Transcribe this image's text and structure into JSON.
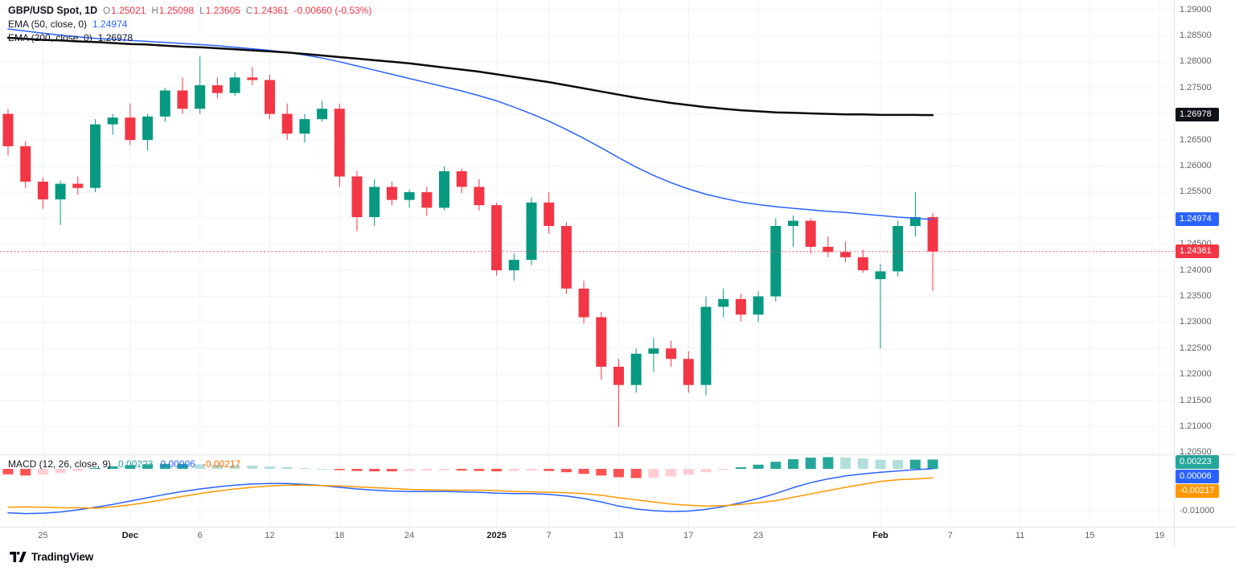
{
  "colors": {
    "up": "#089981",
    "down": "#f23645",
    "ema50": "#2962ff",
    "ema200": "#0a0a0a",
    "macd_line": "#2962ff",
    "signal_line": "#ff9800",
    "hist_up_strong": "#26a69a",
    "hist_up_weak": "#b2dfdb",
    "hist_dn_strong": "#ff5252",
    "hist_dn_weak": "#ffcdd2",
    "grid": "#f0f3fa",
    "border": "#e0e3eb",
    "last_price_line": "#f23645",
    "badge_ema200": "#0f1318",
    "badge_ema50": "#2962ff",
    "badge_last": "#f23645",
    "badge_hist": "#26a69a",
    "badge_macd": "#2962ff",
    "badge_signal": "#ff9800"
  },
  "header": {
    "symbol": {
      "title": "GBP/USD Spot, 1D",
      "o_label": "O",
      "o": "1.25021",
      "h_label": "H",
      "h": "1.25098",
      "l_label": "L",
      "l": "1.23605",
      "c_label": "C",
      "c": "1.24361",
      "change": "-0.00660 (-0.53%)"
    },
    "ema50": {
      "title": "EMA (50, close, 0)",
      "value": "1.24974"
    },
    "ema200": {
      "title": "EMA (200, close, 0)",
      "value": "1.26978"
    }
  },
  "macd_legend": {
    "title": "MACD (12, 26, close, 9)",
    "hist": "0.00223",
    "macd": "0.00006",
    "signal": "-0.00217"
  },
  "price_axis": {
    "ticks": [
      "1.29000",
      "1.28500",
      "1.28000",
      "1.27500",
      "1.27000",
      "1.26500",
      "1.26000",
      "1.25500",
      "1.25000",
      "1.24500",
      "1.24000",
      "1.23500",
      "1.23000",
      "1.22500",
      "1.22000",
      "1.21500",
      "1.21000",
      "1.20500"
    ],
    "badges": {
      "ema200": "1.26978",
      "ema50": "1.24974",
      "last": "1.24361"
    }
  },
  "macd_axis": {
    "badges": {
      "hist": "0.00223",
      "macd": "0.00006",
      "signal": "-0.00217"
    },
    "tick": "-0.01000"
  },
  "time_axis": {
    "labels": [
      {
        "text": "25",
        "i": 2,
        "major": false
      },
      {
        "text": "Dec",
        "i": 7,
        "major": true
      },
      {
        "text": "6",
        "i": 11,
        "major": false
      },
      {
        "text": "12",
        "i": 15,
        "major": false
      },
      {
        "text": "18",
        "i": 19,
        "major": false
      },
      {
        "text": "24",
        "i": 23,
        "major": false
      },
      {
        "text": "2025",
        "i": 28,
        "major": true
      },
      {
        "text": "7",
        "i": 31,
        "major": false
      },
      {
        "text": "13",
        "i": 35,
        "major": false
      },
      {
        "text": "17",
        "i": 39,
        "major": false
      },
      {
        "text": "23",
        "i": 43,
        "major": false
      },
      {
        "text": "Feb",
        "i": 50,
        "major": true
      },
      {
        "text": "7",
        "i": 54,
        "major": false
      },
      {
        "text": "11",
        "i": 58,
        "major": false
      },
      {
        "text": "15",
        "i": 62,
        "major": false
      },
      {
        "text": "19",
        "i": 66,
        "major": false
      }
    ]
  },
  "footer": {
    "brand": "TradingView"
  },
  "chart_data": [
    {
      "type": "candlestick",
      "title": "GBP/USD Spot, 1D",
      "ylim": [
        1.205,
        1.292
      ],
      "y_tick_step": 0.005,
      "last": {
        "open": 1.25021,
        "high": 1.25098,
        "low": 1.23605,
        "close": 1.24361,
        "change": -0.0066,
        "change_pct": -0.53
      },
      "dates": [
        "Nov 21",
        "Nov 22",
        "Nov 25",
        "Nov 26",
        "Nov 27",
        "Nov 28",
        "Nov 29",
        "Dec 2",
        "Dec 3",
        "Dec 4",
        "Dec 5",
        "Dec 6",
        "Dec 9",
        "Dec 10",
        "Dec 11",
        "Dec 12",
        "Dec 13",
        "Dec 16",
        "Dec 17",
        "Dec 18",
        "Dec 19",
        "Dec 20",
        "Dec 23",
        "Dec 24",
        "Dec 26",
        "Dec 27",
        "Dec 30",
        "Dec 31",
        "Jan 2",
        "Jan 3",
        "Jan 6",
        "Jan 7",
        "Jan 8",
        "Jan 9",
        "Jan 10",
        "Jan 13",
        "Jan 14",
        "Jan 15",
        "Jan 16",
        "Jan 17",
        "Jan 20",
        "Jan 21",
        "Jan 22",
        "Jan 23",
        "Jan 24",
        "Jan 27",
        "Jan 28",
        "Jan 29",
        "Jan 30",
        "Jan 31",
        "Feb 3",
        "Feb 4",
        "Feb 5",
        "Feb 6"
      ],
      "ohlc": [
        [
          1.27,
          1.271,
          1.262,
          1.2638
        ],
        [
          1.2638,
          1.2648,
          1.2558,
          1.257
        ],
        [
          1.257,
          1.2578,
          1.2518,
          1.2536
        ],
        [
          1.2536,
          1.2572,
          1.2487,
          1.2566
        ],
        [
          1.2566,
          1.258,
          1.2545,
          1.2558
        ],
        [
          1.2558,
          1.269,
          1.255,
          1.268
        ],
        [
          1.268,
          1.27,
          1.266,
          1.2693
        ],
        [
          1.2693,
          1.272,
          1.264,
          1.265
        ],
        [
          1.265,
          1.27,
          1.263,
          1.2695
        ],
        [
          1.2695,
          1.275,
          1.2685,
          1.2745
        ],
        [
          1.2745,
          1.277,
          1.27,
          1.271
        ],
        [
          1.271,
          1.281,
          1.27,
          1.2755
        ],
        [
          1.2755,
          1.277,
          1.273,
          1.274
        ],
        [
          1.274,
          1.278,
          1.2735,
          1.277
        ],
        [
          1.277,
          1.279,
          1.2755,
          1.2765
        ],
        [
          1.2765,
          1.2775,
          1.269,
          1.27
        ],
        [
          1.27,
          1.272,
          1.265,
          1.2662
        ],
        [
          1.2662,
          1.27,
          1.2645,
          1.269
        ],
        [
          1.269,
          1.2725,
          1.2685,
          1.271
        ],
        [
          1.271,
          1.272,
          1.256,
          1.258
        ],
        [
          1.258,
          1.259,
          1.2475,
          1.2502
        ],
        [
          1.2502,
          1.2575,
          1.2485,
          1.256
        ],
        [
          1.256,
          1.257,
          1.2525,
          1.2535
        ],
        [
          1.2535,
          1.2555,
          1.252,
          1.255
        ],
        [
          1.255,
          1.256,
          1.2505,
          1.252
        ],
        [
          1.252,
          1.26,
          1.2515,
          1.259
        ],
        [
          1.259,
          1.2595,
          1.2548,
          1.256
        ],
        [
          1.256,
          1.2575,
          1.2515,
          1.2525
        ],
        [
          1.2525,
          1.253,
          1.239,
          1.24
        ],
        [
          1.24,
          1.2432,
          1.238,
          1.242
        ],
        [
          1.242,
          1.254,
          1.241,
          1.253
        ],
        [
          1.253,
          1.255,
          1.247,
          1.2485
        ],
        [
          1.2485,
          1.2492,
          1.2355,
          1.2365
        ],
        [
          1.2365,
          1.238,
          1.2298,
          1.231
        ],
        [
          1.231,
          1.232,
          1.219,
          1.2215
        ],
        [
          1.2215,
          1.223,
          1.21,
          1.218
        ],
        [
          1.218,
          1.225,
          1.2165,
          1.224
        ],
        [
          1.224,
          1.227,
          1.2205,
          1.225
        ],
        [
          1.225,
          1.2265,
          1.2215,
          1.223
        ],
        [
          1.223,
          1.2245,
          1.2165,
          1.218
        ],
        [
          1.218,
          1.235,
          1.216,
          1.233
        ],
        [
          1.233,
          1.2365,
          1.231,
          1.2345
        ],
        [
          1.2345,
          1.2355,
          1.2302,
          1.2315
        ],
        [
          1.2315,
          1.236,
          1.23,
          1.235
        ],
        [
          1.235,
          1.25,
          1.234,
          1.2485
        ],
        [
          1.2485,
          1.2505,
          1.2445,
          1.2495
        ],
        [
          1.2495,
          1.25,
          1.2432,
          1.2445
        ],
        [
          1.2445,
          1.2465,
          1.2425,
          1.2435
        ],
        [
          1.2435,
          1.2455,
          1.2415,
          1.2425
        ],
        [
          1.2425,
          1.244,
          1.2395,
          1.24
        ],
        [
          1.2383,
          1.2412,
          1.225,
          1.2398
        ],
        [
          1.2398,
          1.2495,
          1.2388,
          1.2485
        ],
        [
          1.2485,
          1.255,
          1.2465,
          1.25021
        ],
        [
          1.25021,
          1.25098,
          1.23605,
          1.24361
        ]
      ],
      "overlays": [
        {
          "name": "EMA (50, close, 0)",
          "color": "#2962ff",
          "values": [
            1.2863,
            1.2859,
            1.2855,
            1.2851,
            1.2848,
            1.2845,
            1.2843,
            1.2841,
            1.2839,
            1.2837,
            1.2835,
            1.2833,
            1.2831,
            1.2828,
            1.2825,
            1.2822,
            1.2818,
            1.2813,
            1.2807,
            1.28,
            1.2792,
            1.2784,
            1.2776,
            1.2768,
            1.276,
            1.2752,
            1.2744,
            1.2735,
            1.2725,
            1.2713,
            1.27,
            1.2686,
            1.267,
            1.2653,
            1.2635,
            1.2616,
            1.2598,
            1.2582,
            1.2568,
            1.2556,
            1.2546,
            1.2538,
            1.2531,
            1.2526,
            1.2522,
            1.2519,
            1.2516,
            1.2513,
            1.2511,
            1.2508,
            1.2505,
            1.2502,
            1.25,
            1.24974
          ]
        },
        {
          "name": "EMA (200, close, 0)",
          "color": "#0a0a0a",
          "values": [
            1.2846,
            1.2844,
            1.2842,
            1.2841,
            1.2839,
            1.2838,
            1.2836,
            1.2834,
            1.2833,
            1.2831,
            1.2829,
            1.2828,
            1.2826,
            1.2824,
            1.2822,
            1.282,
            1.2818,
            1.2815,
            1.2812,
            1.2809,
            1.2806,
            1.2803,
            1.28,
            1.2797,
            1.2793,
            1.2789,
            1.2785,
            1.2781,
            1.2776,
            1.2771,
            1.2766,
            1.2761,
            1.2755,
            1.2749,
            1.2743,
            1.2737,
            1.2731,
            1.2726,
            1.2721,
            1.2717,
            1.2713,
            1.271,
            1.2707,
            1.2705,
            1.2703,
            1.2702,
            1.2701,
            1.27,
            1.2699,
            1.2699,
            1.2698,
            1.2698,
            1.2698,
            1.26978
          ]
        }
      ]
    },
    {
      "type": "macd",
      "title": "MACD (12, 26, close, 9)",
      "fast": 12,
      "slow": 26,
      "source": "close",
      "signal_period": 9,
      "ylim": [
        -0.012,
        0.003
      ],
      "current": {
        "histogram": 0.00223,
        "macd": 6e-05,
        "signal": -0.00217
      },
      "histogram": [
        -0.0013,
        -0.0016,
        -0.0014,
        -0.001,
        -0.0005,
        0.0002,
        0.0006,
        0.0009,
        0.0011,
        0.0012,
        0.0012,
        0.0011,
        0.001,
        0.0009,
        0.0008,
        0.0006,
        0.0004,
        0.0002,
        0.0,
        -0.0003,
        -0.0005,
        -0.0006,
        -0.0006,
        -0.0005,
        -0.0004,
        -0.0003,
        -0.0004,
        -0.0005,
        -0.0006,
        -0.0005,
        -0.0004,
        -0.0005,
        -0.0008,
        -0.0012,
        -0.0016,
        -0.002,
        -0.0022,
        -0.0021,
        -0.0018,
        -0.0014,
        -0.0008,
        -0.0002,
        0.0004,
        0.001,
        0.0017,
        0.0023,
        0.0027,
        0.0028,
        0.0027,
        0.0025,
        0.0022,
        0.0021,
        0.0022,
        0.00223
      ],
      "macd": [
        -0.0105,
        -0.0107,
        -0.0106,
        -0.0103,
        -0.0098,
        -0.0092,
        -0.0085,
        -0.0077,
        -0.0069,
        -0.0061,
        -0.0054,
        -0.0048,
        -0.0043,
        -0.0039,
        -0.0036,
        -0.0035,
        -0.0035,
        -0.0037,
        -0.004,
        -0.0044,
        -0.0048,
        -0.0051,
        -0.0053,
        -0.0054,
        -0.0054,
        -0.0054,
        -0.0055,
        -0.0056,
        -0.0058,
        -0.0059,
        -0.0059,
        -0.0061,
        -0.0065,
        -0.0071,
        -0.0079,
        -0.0089,
        -0.0096,
        -0.01,
        -0.0102,
        -0.0101,
        -0.0097,
        -0.009,
        -0.0081,
        -0.0071,
        -0.0059,
        -0.0045,
        -0.0033,
        -0.0024,
        -0.0017,
        -0.0012,
        -0.0008,
        -0.0005,
        -0.0002,
        6e-05
      ],
      "signal": [
        -0.0092,
        -0.0091,
        -0.0092,
        -0.0093,
        -0.0093,
        -0.0094,
        -0.0091,
        -0.0086,
        -0.008,
        -0.0073,
        -0.0066,
        -0.0059,
        -0.0053,
        -0.0048,
        -0.0044,
        -0.0041,
        -0.0039,
        -0.0039,
        -0.004,
        -0.0041,
        -0.0043,
        -0.0045,
        -0.0047,
        -0.0049,
        -0.005,
        -0.0051,
        -0.0051,
        -0.0051,
        -0.0052,
        -0.0054,
        -0.0055,
        -0.0056,
        -0.0057,
        -0.0059,
        -0.0063,
        -0.0069,
        -0.0074,
        -0.0079,
        -0.0084,
        -0.0087,
        -0.0089,
        -0.0088,
        -0.0085,
        -0.0081,
        -0.0076,
        -0.0068,
        -0.006,
        -0.0052,
        -0.0044,
        -0.0037,
        -0.003,
        -0.0026,
        -0.0024,
        -0.00217
      ]
    }
  ]
}
